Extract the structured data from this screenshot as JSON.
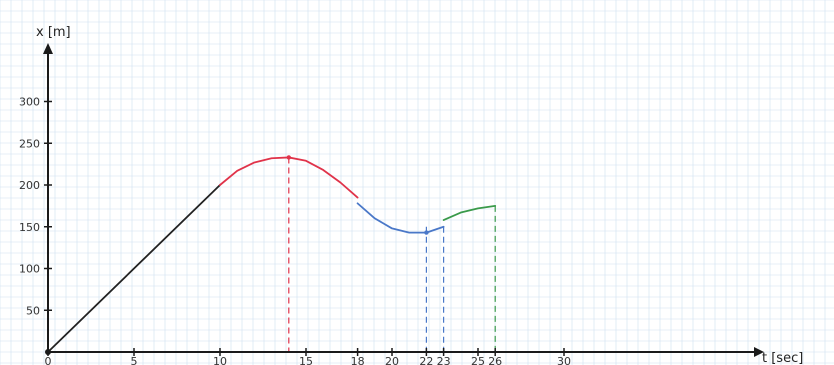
{
  "chart_data": {
    "type": "line",
    "xlabel": "t [sec]",
    "ylabel": "x [m]",
    "xlim": [
      0,
      35
    ],
    "ylim": [
      0,
      330
    ],
    "x_ticks": [
      {
        "value": 0,
        "label": "0"
      },
      {
        "value": 5,
        "label": "5"
      },
      {
        "value": 10,
        "label": "10"
      },
      {
        "value": 15,
        "label": "15"
      },
      {
        "value": 18,
        "label": "18"
      },
      {
        "value": 20,
        "label": "20"
      },
      {
        "value": 22,
        "label": "22"
      },
      {
        "value": 23,
        "label": "23"
      },
      {
        "value": 25,
        "label": "25"
      },
      {
        "value": 26,
        "label": "26"
      },
      {
        "value": 30,
        "label": "30"
      }
    ],
    "y_ticks": [
      {
        "value": 50,
        "label": "50"
      },
      {
        "value": 100,
        "label": "100"
      },
      {
        "value": 150,
        "label": "150"
      },
      {
        "value": 200,
        "label": "200"
      },
      {
        "value": 250,
        "label": "250"
      },
      {
        "value": 300,
        "label": "300"
      }
    ],
    "grid": true,
    "colors": {
      "axis": "#1a1a1a",
      "black": "#222222",
      "red": "#e0334a",
      "blue": "#4a78c8",
      "green": "#3a9a4a",
      "grid": "#cfdff0"
    },
    "series": [
      {
        "color": "black",
        "x": [
          0,
          10
        ],
        "y": [
          0,
          200
        ]
      },
      {
        "color": "red",
        "x": [
          10,
          11,
          12,
          13,
          14,
          15,
          16,
          17,
          18
        ],
        "y": [
          200,
          217,
          227,
          232,
          233,
          229,
          218,
          203,
          185
        ]
      },
      {
        "color": "blue",
        "x": [
          18,
          19,
          20,
          21,
          22,
          23
        ],
        "y": [
          178,
          160,
          148,
          143,
          143,
          150
        ]
      },
      {
        "color": "green",
        "x": [
          23,
          24,
          25,
          26
        ],
        "y": [
          158,
          167,
          172,
          175
        ]
      }
    ],
    "markers": [
      {
        "x": 14,
        "y": 233,
        "color": "red"
      },
      {
        "x": 22,
        "y": 143,
        "color": "blue"
      }
    ],
    "dashed_verticals": [
      {
        "x": 14,
        "y_top": 233,
        "color": "red"
      },
      {
        "x": 22,
        "y_top": 150,
        "color": "blue"
      },
      {
        "x": 23,
        "y_top": 150,
        "color": "blue"
      },
      {
        "x": 26,
        "y_top": 175,
        "color": "green"
      }
    ]
  }
}
